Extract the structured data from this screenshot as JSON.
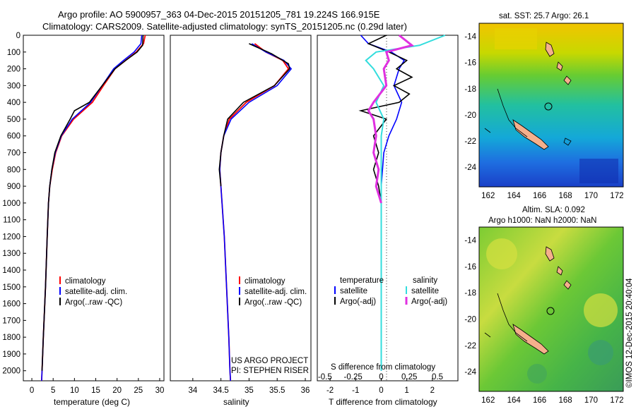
{
  "header": {
    "line1": "Argo profile: AO 5900957_363 04-Dec-2015 20151205_781 19.224S 166.915E",
    "line2": "Climatology: CARS2009. Satellite-adjusted climatology: synTS_20151205.nc (0.29d later)"
  },
  "credit": {
    "line1": "US ARGO PROJECT",
    "line2": "PI: STEPHEN RISER"
  },
  "stamp": "©IMOS 12-Dec-2015 20:40:04",
  "map_titles": {
    "sst": "sat. SST: 25.7 Argo: 26.1",
    "sla1": "Altim. SLA: 0.092",
    "sla2": "Argo h1000: NaN h2000: NaN"
  },
  "colors": {
    "climatology": "#ff0000",
    "satellite": "#0000ff",
    "argo": "#000000",
    "sal_satellite": "#33dddd",
    "sal_argo": "#e030e0"
  },
  "chart_data": [
    {
      "type": "line",
      "panel": "temperature",
      "xlabel": "temperature (deg C)",
      "ylabel": "",
      "xlim": [
        -2,
        31
      ],
      "ylim": [
        2060,
        0
      ],
      "xticks": [
        "0",
        "5",
        "10",
        "15",
        "20",
        "25",
        "30"
      ],
      "yticks": [
        "0",
        "100",
        "200",
        "300",
        "400",
        "500",
        "600",
        "700",
        "800",
        "900",
        "1000",
        "1100",
        "1200",
        "1300",
        "1400",
        "1500",
        "1600",
        "1700",
        "1800",
        "1900",
        "2000"
      ],
      "grid": false,
      "legend_position": "lower-left",
      "series": [
        {
          "name": "climatology",
          "points": [
            [
              26.6,
              0
            ],
            [
              26.2,
              50
            ],
            [
              24.5,
              100
            ],
            [
              22,
              150
            ],
            [
              19.5,
              200
            ],
            [
              16.8,
              300
            ],
            [
              14.2,
              400
            ],
            [
              9.8,
              500
            ],
            [
              7,
              600
            ],
            [
              5.6,
              700
            ],
            [
              4.8,
              800
            ],
            [
              4.2,
              900
            ],
            [
              3.9,
              1000
            ],
            [
              3.6,
              1200
            ],
            [
              3.2,
              1500
            ],
            [
              2.7,
              1800
            ],
            [
              2.4,
              2000
            ],
            [
              2.3,
              2060
            ]
          ]
        },
        {
          "name": "satellite-adj. clim.",
          "points": [
            [
              25.8,
              0
            ],
            [
              25.6,
              50
            ],
            [
              24,
              100
            ],
            [
              21.5,
              150
            ],
            [
              19.2,
              200
            ],
            [
              16.5,
              300
            ],
            [
              13.8,
              400
            ],
            [
              9.5,
              500
            ],
            [
              6.9,
              600
            ],
            [
              5.5,
              700
            ],
            [
              4.7,
              800
            ],
            [
              4.2,
              900
            ],
            [
              3.9,
              1000
            ],
            [
              3.6,
              1200
            ],
            [
              3.2,
              1500
            ],
            [
              2.7,
              1800
            ],
            [
              2.4,
              2000
            ],
            [
              2.3,
              2060
            ]
          ]
        },
        {
          "name": "Argo(..raw -QC)",
          "points": [
            [
              26.1,
              0
            ],
            [
              26,
              60
            ],
            [
              24.7,
              100
            ],
            [
              22,
              150
            ],
            [
              19.5,
              200
            ],
            [
              16.5,
              300
            ],
            [
              13.5,
              400
            ],
            [
              10,
              450
            ],
            [
              9,
              500
            ],
            [
              6.8,
              600
            ],
            [
              5.4,
              700
            ],
            [
              4.7,
              800
            ],
            [
              4.2,
              900
            ],
            [
              3.9,
              1000
            ],
            [
              3.6,
              1200
            ],
            [
              3.2,
              1500
            ],
            [
              2.7,
              1800
            ],
            [
              2.4,
              2000
            ]
          ]
        }
      ]
    },
    {
      "type": "line",
      "panel": "salinity",
      "xlabel": "salinity",
      "xlim": [
        33.6,
        36.1
      ],
      "ylim": [
        2060,
        0
      ],
      "xticks": [
        "34",
        "34.5",
        "35",
        "35.5",
        "36"
      ],
      "grid": false,
      "legend_position": "lower-right",
      "series": [
        {
          "name": "climatology",
          "points": [
            [
              35.1,
              50
            ],
            [
              35.3,
              100
            ],
            [
              35.6,
              150
            ],
            [
              35.7,
              200
            ],
            [
              35.45,
              300
            ],
            [
              34.95,
              400
            ],
            [
              34.65,
              500
            ],
            [
              34.55,
              600
            ],
            [
              34.5,
              700
            ],
            [
              34.48,
              800
            ],
            [
              34.5,
              900
            ],
            [
              34.52,
              1000
            ],
            [
              34.56,
              1200
            ],
            [
              34.6,
              1500
            ],
            [
              34.64,
              1800
            ],
            [
              34.66,
              2000
            ],
            [
              34.67,
              2060
            ]
          ]
        },
        {
          "name": "satellite-adj. clim.",
          "points": [
            [
              35.05,
              50
            ],
            [
              35.3,
              100
            ],
            [
              35.62,
              150
            ],
            [
              35.75,
              200
            ],
            [
              35.5,
              300
            ],
            [
              35.0,
              400
            ],
            [
              34.68,
              500
            ],
            [
              34.55,
              600
            ],
            [
              34.5,
              700
            ],
            [
              34.48,
              800
            ],
            [
              34.5,
              900
            ],
            [
              34.52,
              1000
            ],
            [
              34.56,
              1200
            ],
            [
              34.6,
              1500
            ],
            [
              34.64,
              1800
            ],
            [
              34.66,
              2000
            ],
            [
              34.67,
              2060
            ]
          ]
        },
        {
          "name": "Argo(..raw -QC)",
          "points": [
            [
              35.0,
              50
            ],
            [
              35.4,
              110
            ],
            [
              35.7,
              170
            ],
            [
              35.72,
              200
            ],
            [
              35.45,
              300
            ],
            [
              34.9,
              400
            ],
            [
              34.62,
              500
            ],
            [
              34.55,
              600
            ],
            [
              34.5,
              700
            ],
            [
              34.47,
              800
            ],
            [
              34.5,
              900
            ]
          ]
        }
      ]
    },
    {
      "type": "line",
      "panel": "differences",
      "xlabel": "T difference from climatology",
      "xlabel_top": "S difference from climatology",
      "xlim": [
        -2.5,
        3
      ],
      "ylim": [
        2060,
        0
      ],
      "xticks": [
        "-2",
        "-1",
        "0",
        "1",
        "2"
      ],
      "xticks_top": [
        "-0.5",
        "-0.25",
        "0",
        "0.25",
        "0.5"
      ],
      "grid": false,
      "legend_headers": [
        "temperature",
        "salinity"
      ],
      "series": [
        {
          "name": "satellite",
          "group": "temperature",
          "points": [
            [
              -0.8,
              0
            ],
            [
              -0.5,
              50
            ],
            [
              0.4,
              100
            ],
            [
              0.9,
              150
            ],
            [
              0.7,
              200
            ],
            [
              0.5,
              300
            ],
            [
              0.8,
              400
            ],
            [
              0.6,
              500
            ],
            [
              0.3,
              600
            ],
            [
              0.1,
              700
            ],
            [
              0.05,
              800
            ],
            [
              0,
              900
            ],
            [
              0,
              1000
            ],
            [
              0,
              2000
            ]
          ]
        },
        {
          "name": "Argo(-adj)",
          "group": "temperature",
          "points": [
            [
              0.2,
              0
            ],
            [
              -0.5,
              50
            ],
            [
              0.3,
              100
            ],
            [
              1,
              150
            ],
            [
              0.6,
              200
            ],
            [
              1.2,
              250
            ],
            [
              0.5,
              300
            ],
            [
              1.1,
              350
            ],
            [
              0.7,
              400
            ],
            [
              -0.8,
              450
            ],
            [
              0.2,
              500
            ],
            [
              -0.3,
              600
            ],
            [
              -0.1,
              700
            ],
            [
              -0.3,
              800
            ],
            [
              -0.1,
              900
            ],
            [
              0,
              1000
            ]
          ]
        },
        {
          "name": "satellite",
          "group": "salinity",
          "points": [
            [
              2.5,
              0
            ],
            [
              1.5,
              60
            ],
            [
              -0.2,
              100
            ],
            [
              -0.6,
              150
            ],
            [
              -0.3,
              200
            ],
            [
              0.1,
              300
            ],
            [
              -0.2,
              400
            ],
            [
              0.1,
              500
            ],
            [
              0,
              600
            ],
            [
              0,
              800
            ],
            [
              0,
              1000
            ],
            [
              0,
              2000
            ]
          ]
        },
        {
          "name": "Argo(-adj)",
          "group": "salinity",
          "points": [
            [
              0.7,
              0
            ],
            [
              1.2,
              60
            ],
            [
              0.2,
              100
            ],
            [
              0.3,
              150
            ],
            [
              0.1,
              200
            ],
            [
              0.2,
              300
            ],
            [
              -0.3,
              400
            ],
            [
              -0.5,
              450
            ],
            [
              -0.3,
              500
            ],
            [
              -0.2,
              600
            ],
            [
              -0.3,
              700
            ],
            [
              -0.1,
              800
            ],
            [
              -0.2,
              900
            ],
            [
              0,
              1000
            ]
          ]
        }
      ]
    },
    {
      "type": "heatmap",
      "panel": "map-sst",
      "xticks": [
        "162",
        "164",
        "166",
        "168",
        "170",
        "172"
      ],
      "yticks": [
        "-14",
        "-16",
        "-18",
        "-20",
        "-22",
        "-24"
      ],
      "float_position": [
        166.915,
        -19.224
      ]
    },
    {
      "type": "heatmap",
      "panel": "map-sla",
      "xticks": [
        "162",
        "164",
        "166",
        "168",
        "170",
        "172"
      ],
      "yticks": [
        "-14",
        "-16",
        "-18",
        "-20",
        "-22",
        "-24"
      ],
      "float_position": [
        166.915,
        -19.224
      ]
    }
  ]
}
